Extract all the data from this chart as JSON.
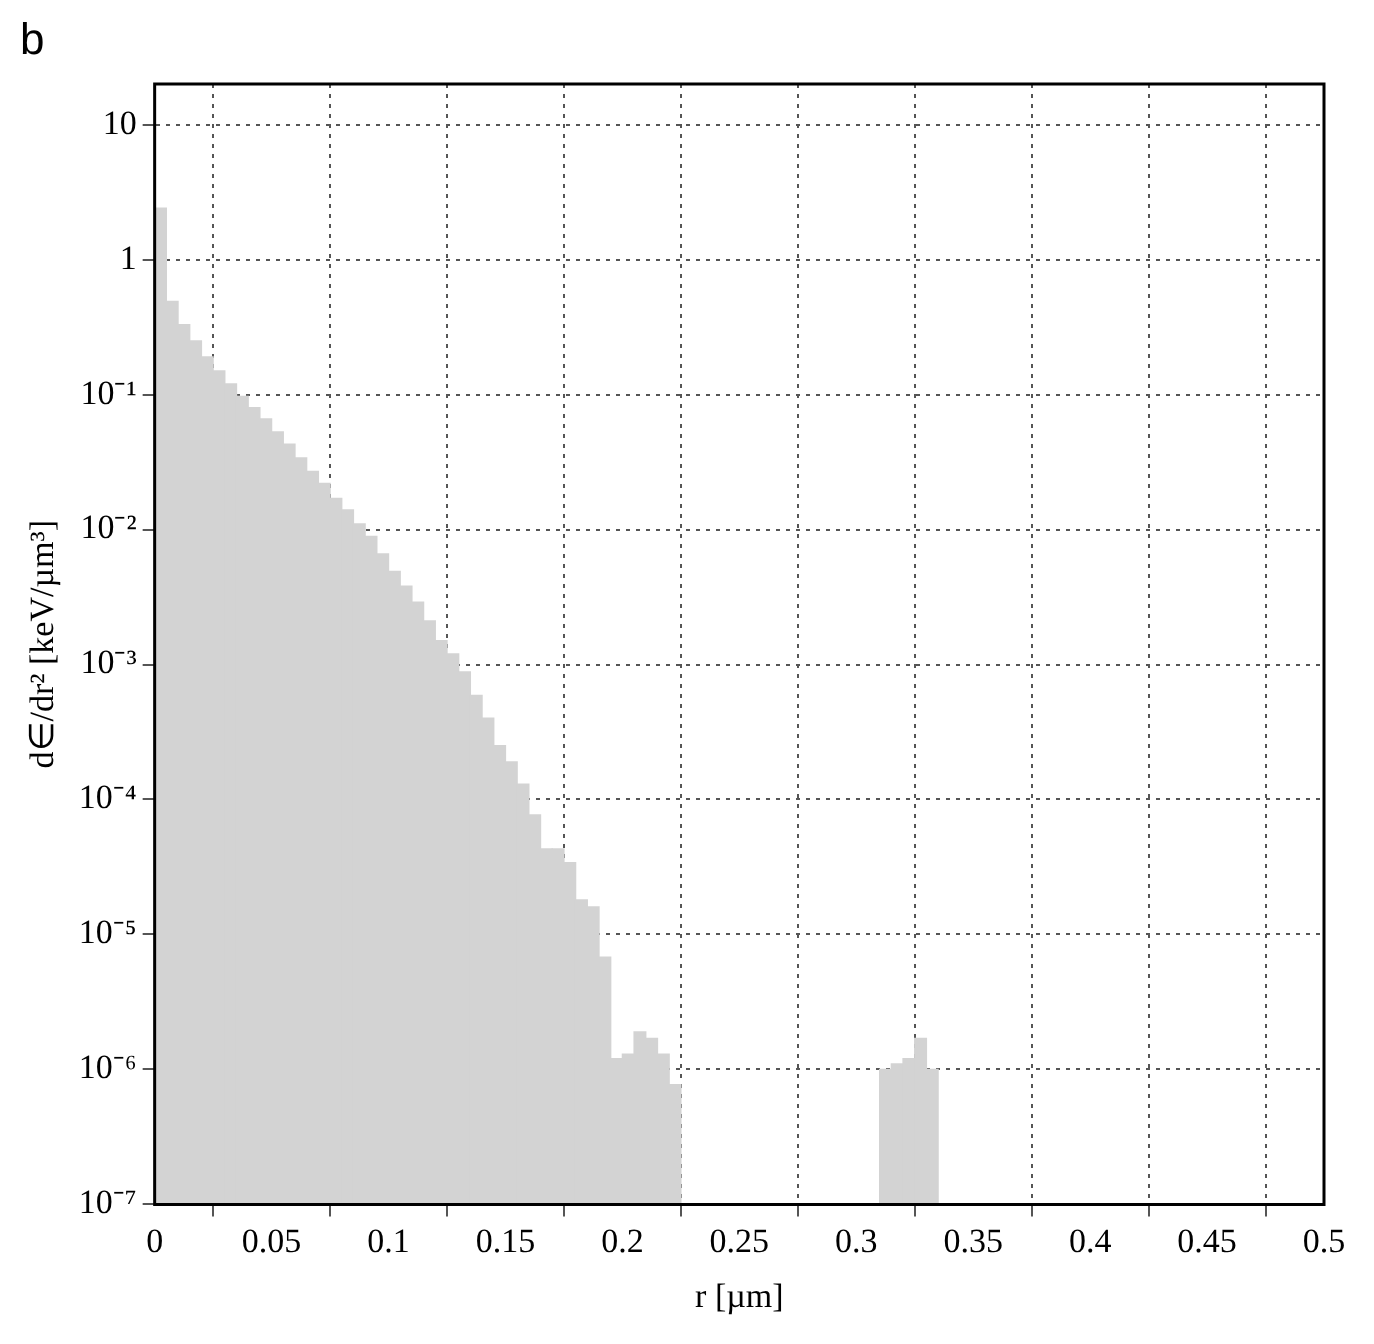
{
  "chart_data": {
    "type": "histogram",
    "xlabel": "r [µm]",
    "ylabel": "d∈/dr² [keV/µm³]",
    "annotations": [
      "b"
    ],
    "bins": [
      0,
      0.005,
      0.01,
      0.015,
      0.02,
      0.025,
      0.03,
      0.035,
      0.04,
      0.045,
      0.05,
      0.055,
      0.06,
      0.065,
      0.07,
      0.075,
      0.08,
      0.085,
      0.09,
      0.095,
      0.1,
      0.105,
      0.11,
      0.115,
      0.12,
      0.125,
      0.13,
      0.135,
      0.14,
      0.145,
      0.15,
      0.155,
      0.16,
      0.165,
      0.17,
      0.175,
      0.18,
      0.185,
      0.19,
      0.195,
      0.2,
      0.205,
      0.21,
      0.215,
      0.22,
      0.225,
      0.23,
      0.235,
      0.24,
      0.245,
      0.25,
      0.255,
      0.26,
      0.265,
      0.27,
      0.275,
      0.28,
      0.285,
      0.29,
      0.295,
      0.3,
      0.305,
      0.31,
      0.315,
      0.32,
      0.325,
      0.33,
      0.335,
      0.34,
      0.345,
      0.35,
      0.355,
      0.36,
      0.365,
      0.37,
      0.375,
      0.38,
      0.385,
      0.39,
      0.395,
      0.4,
      0.405,
      0.41,
      0.415,
      0.42,
      0.425,
      0.43,
      0.435,
      0.44,
      0.445,
      0.45,
      0.455,
      0.46,
      0.465,
      0.47,
      0.475,
      0.48,
      0.485,
      0.49,
      0.495,
      0.5
    ],
    "values": [
      2.4,
      0.49,
      0.33,
      0.25,
      0.19,
      0.15,
      0.12,
      0.097,
      0.08,
      0.066,
      0.053,
      0.043,
      0.034,
      0.027,
      0.022,
      0.017,
      0.014,
      0.011,
      0.0089,
      0.0066,
      0.0049,
      0.0038,
      0.0029,
      0.0021,
      0.0015,
      0.0012,
      0.00088,
      0.00059,
      0.0004,
      0.00025,
      0.00019,
      0.00013,
      7.7e-05,
      4.3e-05,
      4.3e-05,
      3.4e-05,
      1.8e-05,
      1.6e-05,
      6.8e-06,
      1.2e-06,
      1.3e-06,
      1.9e-06,
      1.7e-06,
      1.3e-06,
      7.7e-07,
      null,
      null,
      null,
      null,
      null,
      null,
      null,
      null,
      null,
      null,
      null,
      null,
      null,
      null,
      null,
      null,
      null,
      1e-06,
      1.1e-06,
      1.2e-06,
      1.7e-06,
      1e-06,
      null,
      null,
      null,
      null,
      null,
      null,
      null,
      null,
      null,
      null,
      null,
      null,
      null,
      null,
      null,
      null,
      null,
      null,
      null,
      null,
      null,
      null,
      null,
      null,
      null,
      null,
      null,
      null,
      null,
      null,
      null,
      null,
      null
    ],
    "color": "#d3d3d3",
    "log": "y",
    "grid": true,
    "xlim": [
      0,
      0.5
    ],
    "xticks": [
      0,
      0.05,
      0.1,
      0.15,
      0.2,
      0.25,
      0.3,
      0.35,
      0.4,
      0.45,
      0.5
    ],
    "ylim": [
      1e-07,
      20
    ],
    "yticks": [
      {
        "value": 1e-07,
        "label": "10⁻⁷"
      },
      {
        "value": 1e-06,
        "label": "10⁻⁶"
      },
      {
        "value": 1e-05,
        "label": "10⁻⁵"
      },
      {
        "value": 0.0001,
        "label": "10⁻⁴"
      },
      {
        "value": 0.001,
        "label": "10⁻³"
      },
      {
        "value": 0.01,
        "label": "10⁻²"
      },
      {
        "value": 0.1,
        "label": "10⁻¹"
      },
      1,
      10
    ]
  }
}
